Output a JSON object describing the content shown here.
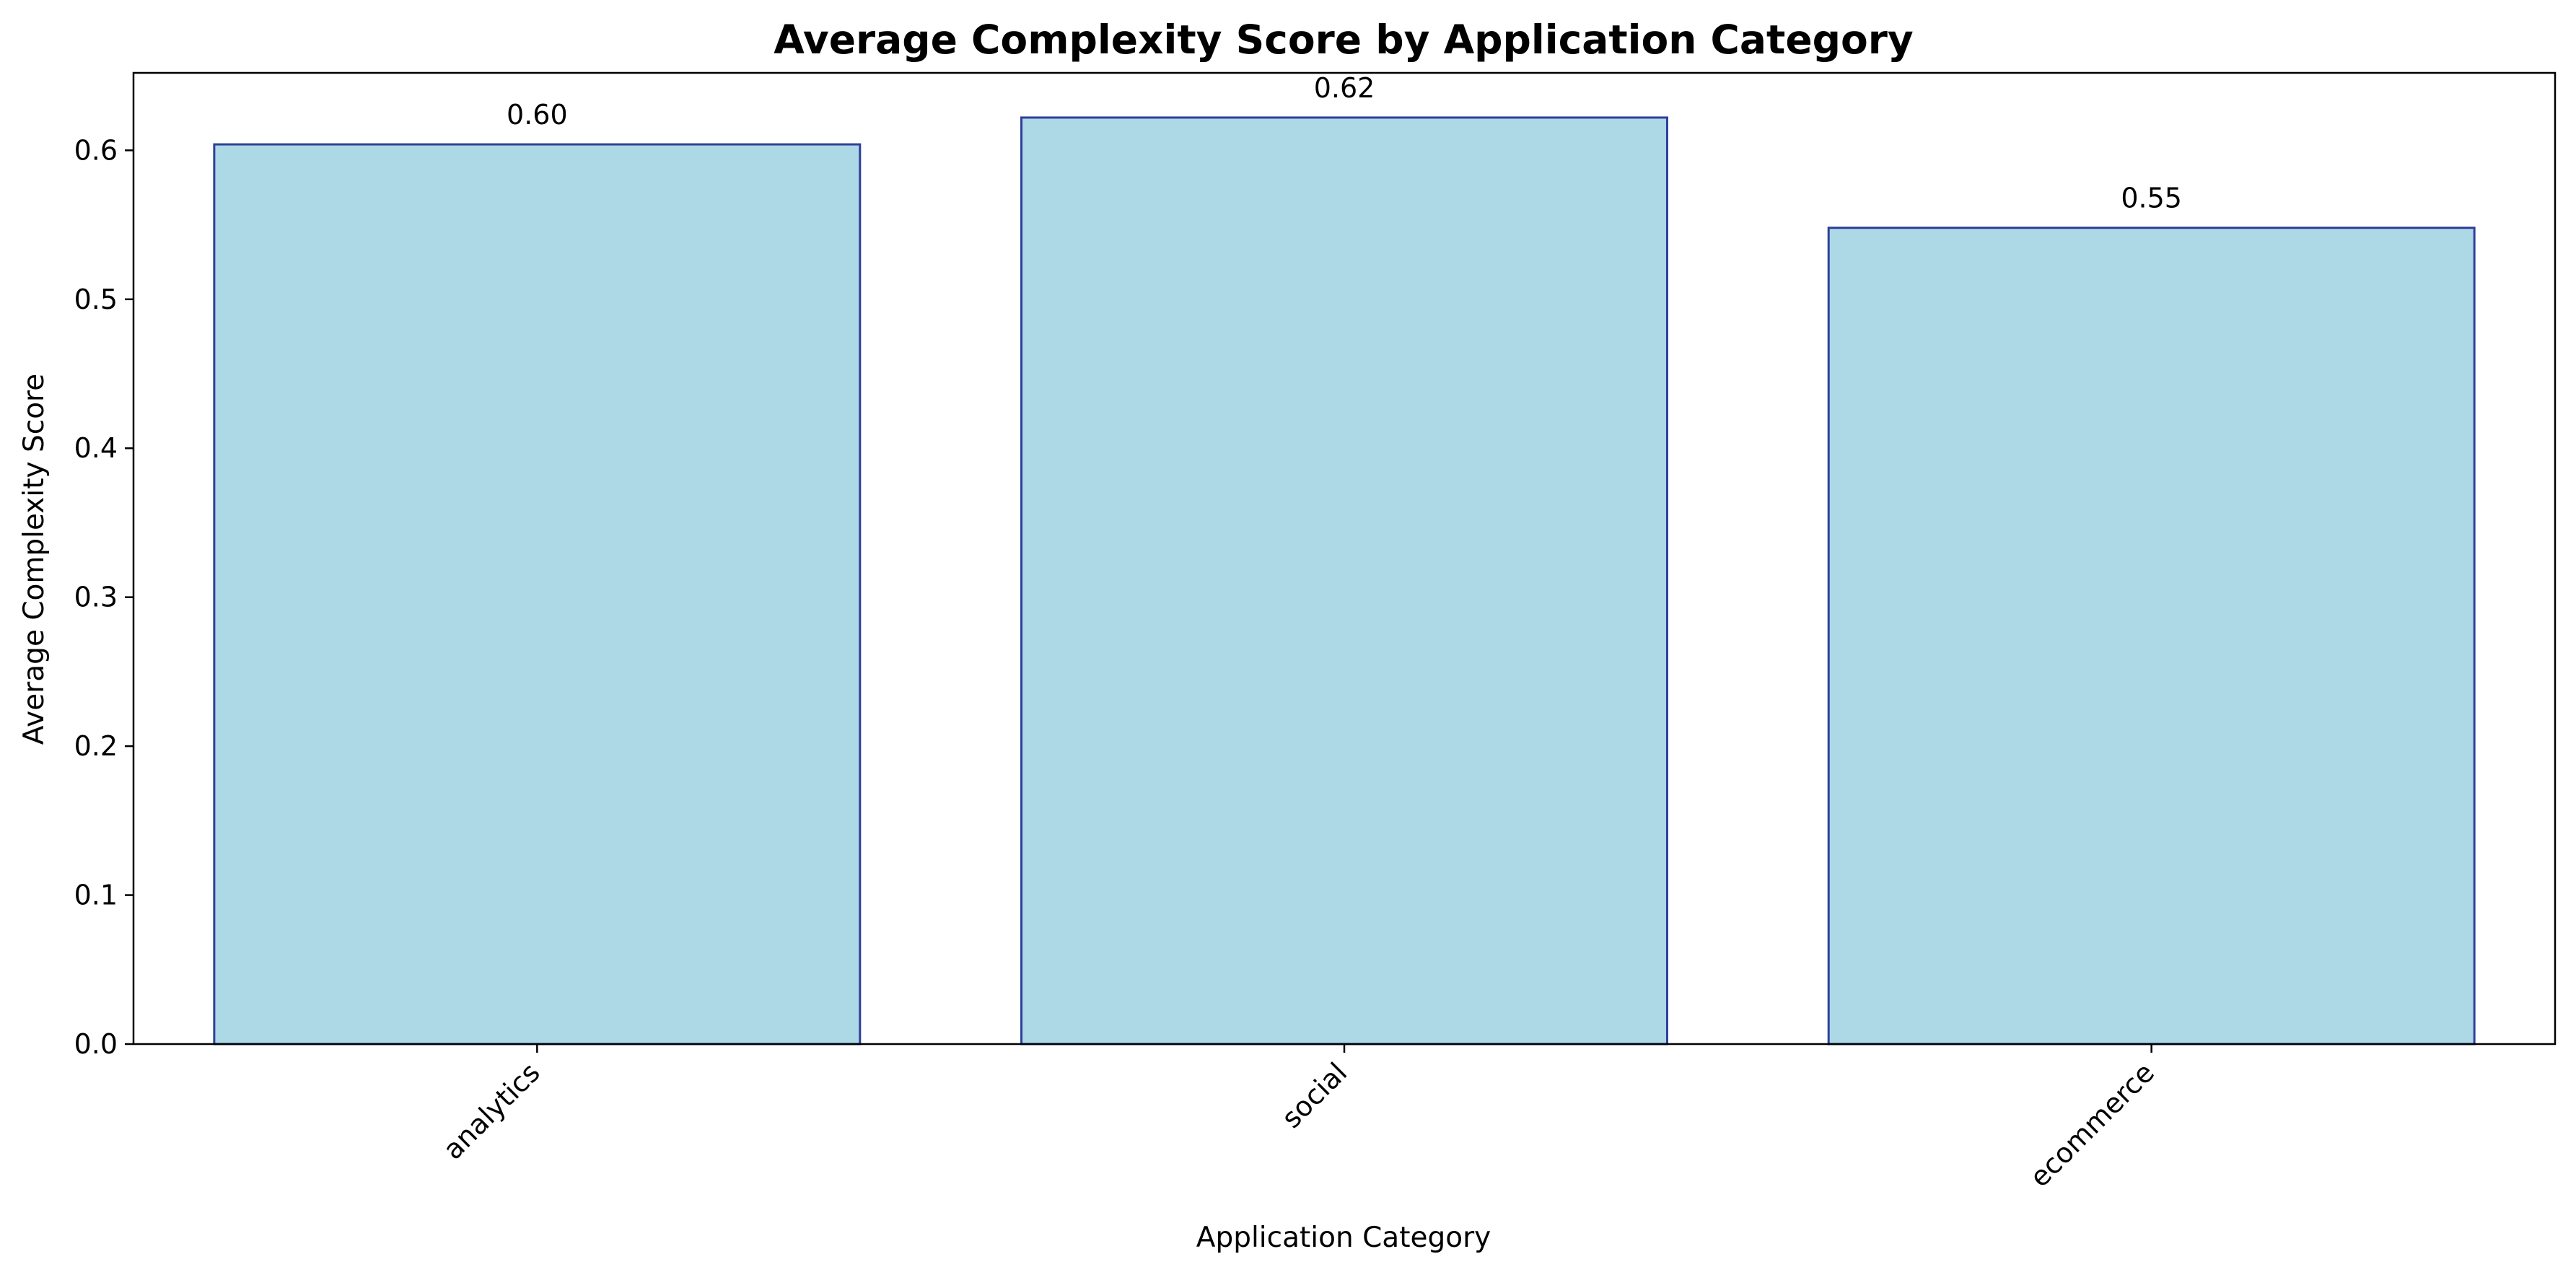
{
  "chart_data": {
    "type": "bar",
    "title": "Average Complexity Score by Application Category",
    "xlabel": "Application Category",
    "ylabel": "Average Complexity Score",
    "categories": [
      "analytics",
      "social",
      "ecommerce"
    ],
    "values": [
      0.604,
      0.622,
      0.548
    ],
    "value_labels": [
      "0.60",
      "0.62",
      "0.55"
    ],
    "ylim": [
      0,
      0.652
    ],
    "yticks": [
      "0.0",
      "0.1",
      "0.2",
      "0.3",
      "0.4",
      "0.5",
      "0.6"
    ],
    "grid": false,
    "legend": "none",
    "colors": {
      "bar_fill": "#add8e6",
      "bar_edge": "#2e3f9a",
      "axis": "#000000",
      "text": "#000000",
      "background": "#ffffff"
    }
  }
}
